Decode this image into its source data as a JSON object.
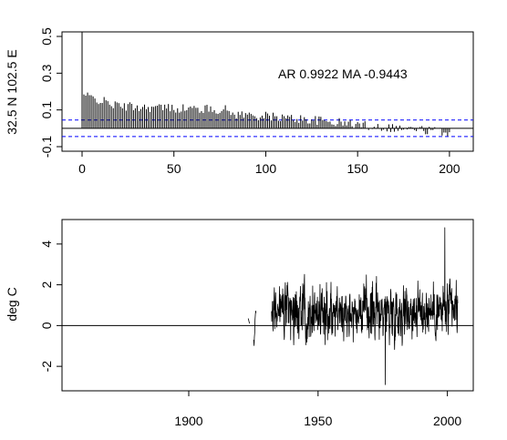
{
  "chart_data": [
    {
      "type": "bar",
      "subtype": "acf",
      "ylabel": "32.5 N 102.5 E",
      "annotation": "AR 0.9922  MA -0.9443",
      "xlim": [
        0,
        207
      ],
      "ylim": [
        -0.1,
        0.5
      ],
      "xticks": [
        0,
        50,
        100,
        150,
        200
      ],
      "yticks": [
        -0.1,
        0.1,
        0.3,
        0.5
      ],
      "ytick_labels": [
        "-0.1",
        "0.1",
        "0.3",
        "0.5"
      ],
      "zero_line": 0,
      "confidence_bounds": [
        0.045,
        -0.045
      ],
      "confidence_color": "#0000ff",
      "series": [
        {
          "name": "",
          "segments": [
            {
              "from": 0,
              "to": 0,
              "start_value": 1.0,
              "end_value": 1.0
            },
            {
              "from": 1,
              "to": 20,
              "start_value": 0.18,
              "end_value": 0.12
            },
            {
              "from": 21,
              "to": 80,
              "start_value": 0.12,
              "end_value": 0.1
            },
            {
              "from": 81,
              "to": 120,
              "start_value": 0.08,
              "end_value": 0.05
            },
            {
              "from": 121,
              "to": 160,
              "start_value": 0.05,
              "end_value": 0.01
            },
            {
              "from": 161,
              "to": 200,
              "start_value": 0.01,
              "end_value": -0.02
            }
          ]
        }
      ]
    },
    {
      "type": "line",
      "ylabel": "deg C",
      "xlim": [
        1851,
        2010
      ],
      "ylim": [
        -3.2,
        5.2
      ],
      "xticks": [
        1900,
        1950,
        2000
      ],
      "yticks": [
        -2,
        0,
        2,
        4
      ],
      "ytick_labels": [
        "-2",
        "0",
        "2",
        "4"
      ],
      "zero_line": 0,
      "series": [
        {
          "name": "",
          "segments": [
            {
              "from": 1923,
              "to": 1923.5,
              "start_value": 0.35,
              "end_value": 0.1
            },
            {
              "from": 1925,
              "to": 1926,
              "start_value": -1.0,
              "end_value": 1.0
            },
            {
              "from": 1932,
              "to": 2004,
              "start_value": 0.7,
              "end_value": 0.7
            }
          ],
          "max": {
            "x": 1999,
            "y": 4.8
          },
          "min": {
            "x": 1976,
            "y": -2.9
          }
        }
      ]
    }
  ]
}
